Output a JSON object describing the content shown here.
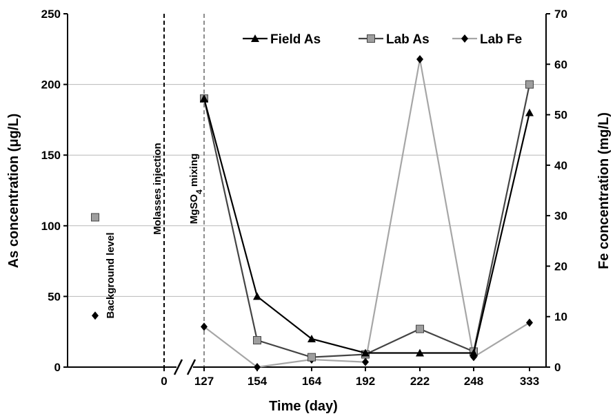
{
  "chart_data": {
    "type": "line",
    "title": "",
    "xlabel": "Time (day)",
    "ylabel_left": "As concentration (μg/L)",
    "ylabel_right": "Fe concentration (mg/L)",
    "ylim_left": [
      0,
      250
    ],
    "ylim_right": [
      0,
      70
    ],
    "yticks_left": [
      "0",
      "50",
      "100",
      "150",
      "200",
      "250"
    ],
    "yticks_right": [
      "0",
      "10",
      "20",
      "30",
      "40",
      "50",
      "60",
      "70"
    ],
    "x_categories": [
      "0",
      "127",
      "154",
      "164",
      "192",
      "222",
      "248",
      "333"
    ],
    "axis_break": "between 0 and 127",
    "grid": "horizontal, left axis",
    "legend_position": "top-right",
    "series": [
      {
        "name": "Field As",
        "axis": "left",
        "color": "#000000",
        "marker": "triangle",
        "x": [
          "127",
          "154",
          "164",
          "192",
          "222",
          "248",
          "333"
        ],
        "values": [
          190,
          50,
          20,
          10,
          10,
          10,
          180
        ]
      },
      {
        "name": "Lab As",
        "axis": "left",
        "color": "#444444",
        "marker": "square",
        "x": [
          "127",
          "154",
          "164",
          "192",
          "222",
          "248",
          "333"
        ],
        "values": [
          190,
          19,
          7,
          9,
          27,
          11,
          200
        ]
      },
      {
        "name": "Lab Fe",
        "axis": "right",
        "color": "#a6a6a6",
        "marker": "diamond",
        "x": [
          "127",
          "154",
          "164",
          "192",
          "222",
          "248",
          "333"
        ],
        "values": [
          8,
          0,
          1.5,
          1,
          61,
          2,
          8.8
        ]
      }
    ],
    "background": {
      "label": "Background level",
      "lab_as": 106,
      "lab_fe": 10.2
    },
    "events": [
      {
        "x": "0",
        "label": "Molasses injection",
        "style": "dashed-black"
      },
      {
        "x": "127",
        "label_main": "MgSO",
        "label_sub": "4",
        "label_tail": "  mixing",
        "style": "dashed-gray"
      }
    ]
  }
}
